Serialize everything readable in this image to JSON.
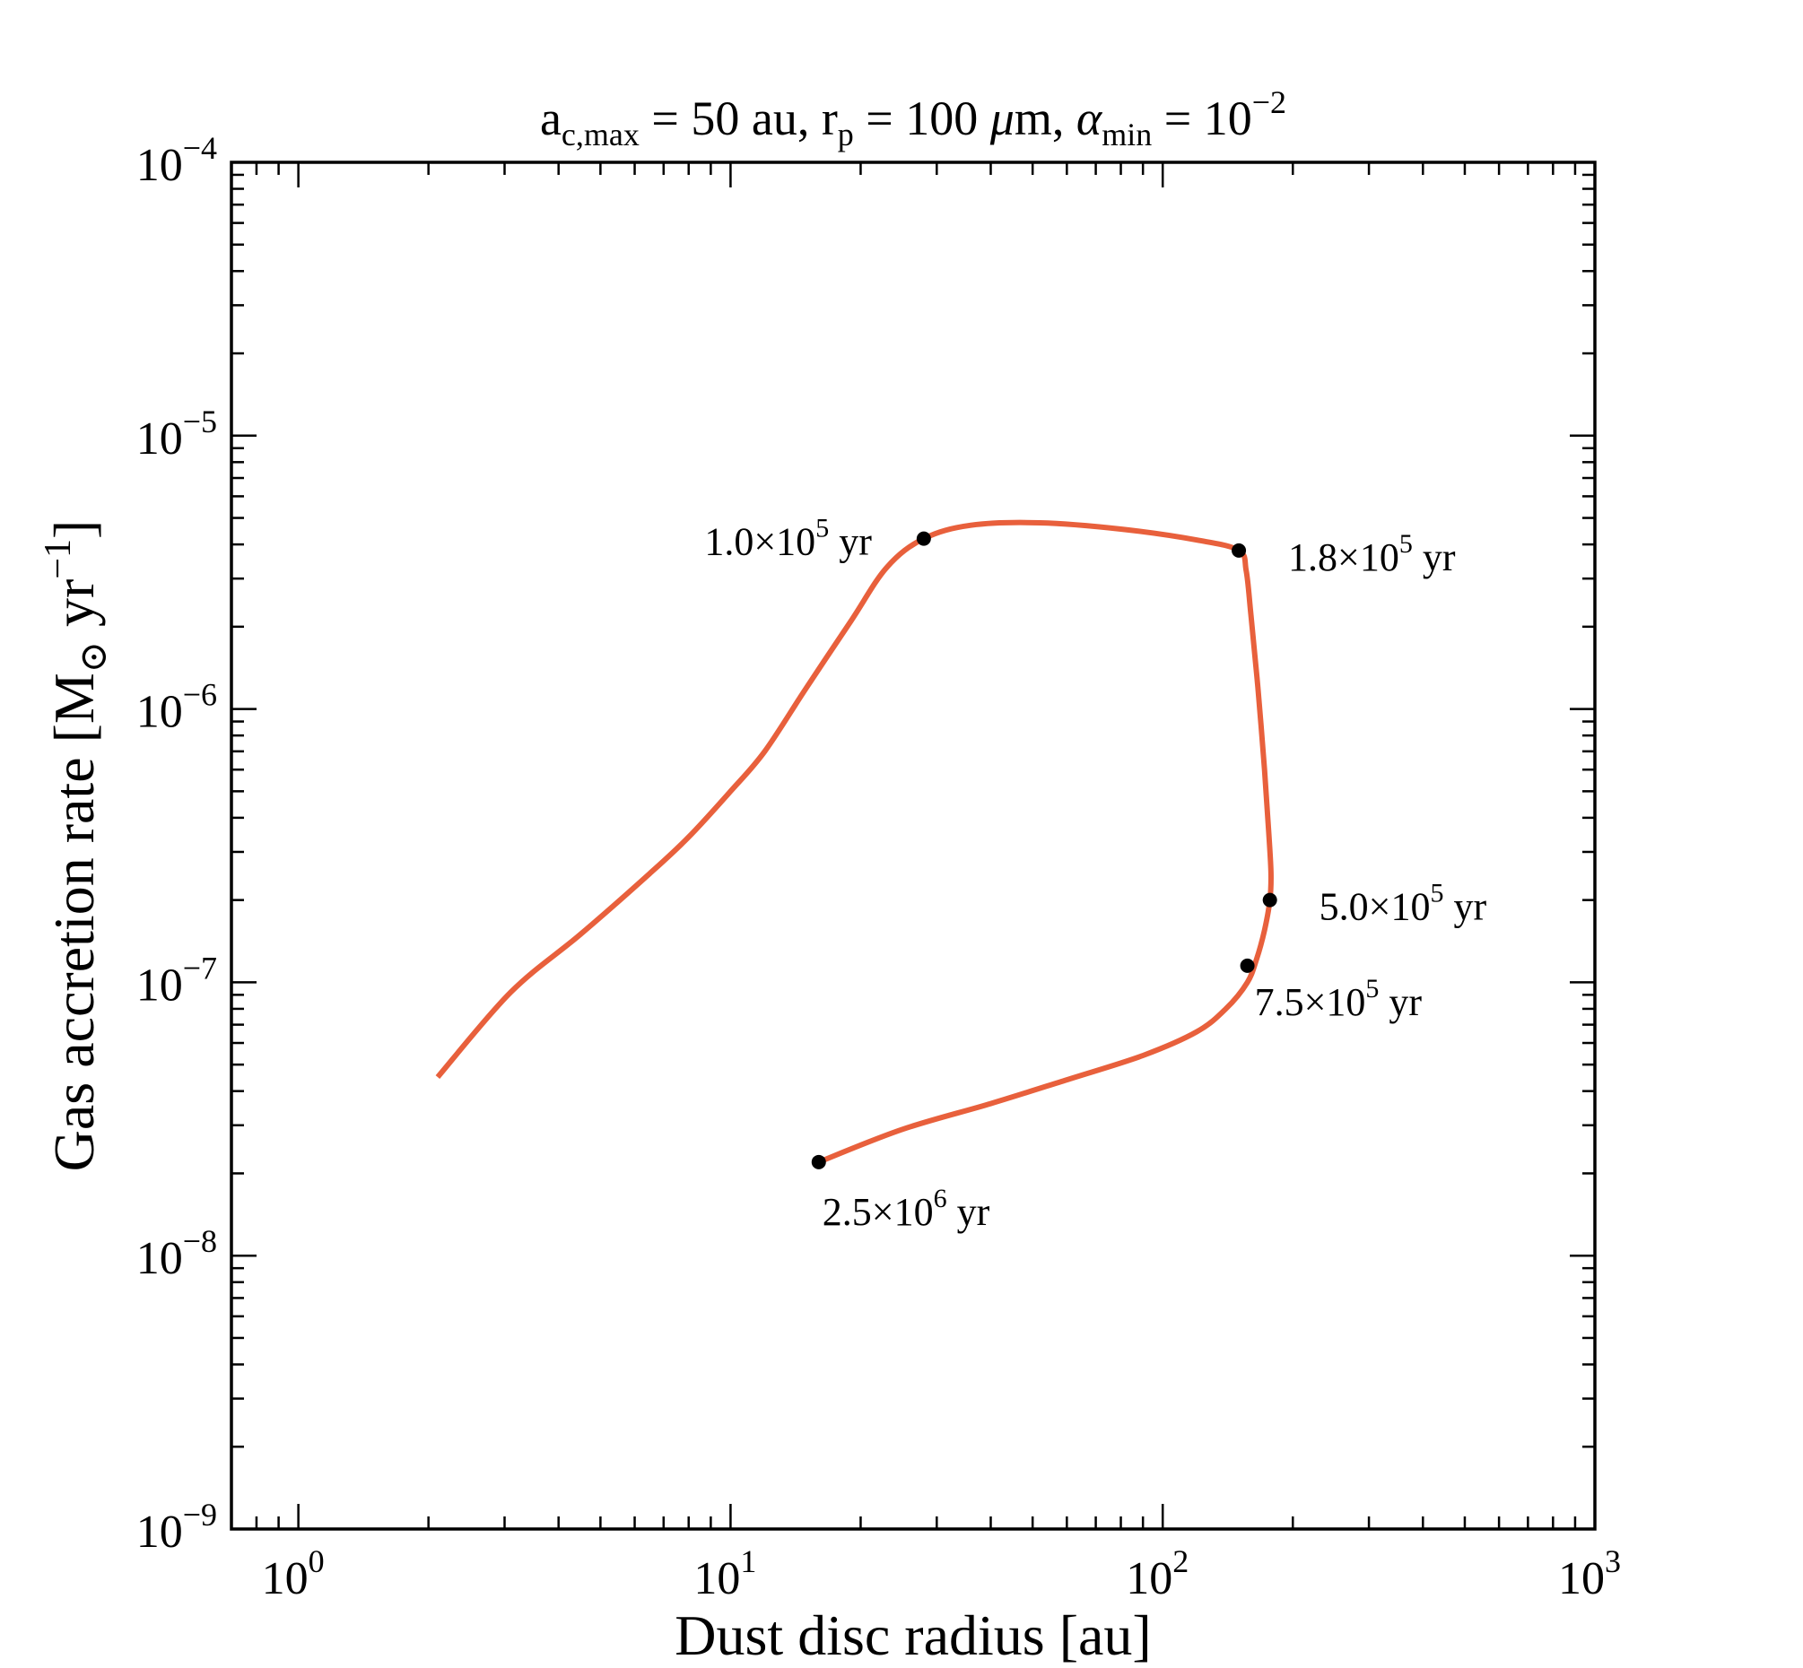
{
  "chart_data": {
    "type": "line",
    "title": {
      "text": "a_c,max = 50 au, r_p = 100 μm, α_min = 10^−2",
      "parts": {
        "a": "a",
        "a_sub": "c,max",
        "seg1": " = 50 au, ",
        "r": "r",
        "r_sub": "p",
        "seg2": " = 100 ",
        "mu": "μ",
        "seg3": "m, ",
        "alpha": "α",
        "alpha_sub": "min",
        "seg4": " = 10",
        "exp": "−2"
      }
    },
    "xlabel": "Dust disc radius [au]",
    "ylabel": {
      "text": "Gas accretion rate [M⊙ yr⁻¹]",
      "parts": {
        "pre": "Gas accretion rate [M",
        "sun": "⊙",
        "mid": " yr",
        "exp": "−1",
        "post": "]"
      }
    },
    "x_scale": "log",
    "y_scale": "log",
    "xlim": [
      0.7,
      1000
    ],
    "ylim": [
      1e-09,
      0.0001
    ],
    "x_ticks": [
      {
        "value": 1,
        "base": "10",
        "exp": "0"
      },
      {
        "value": 10,
        "base": "10",
        "exp": "1"
      },
      {
        "value": 100,
        "base": "10",
        "exp": "2"
      },
      {
        "value": 1000,
        "base": "10",
        "exp": "3"
      }
    ],
    "y_ticks": [
      {
        "value": 1e-09,
        "base": "10",
        "exp": "−9"
      },
      {
        "value": 1e-08,
        "base": "10",
        "exp": "−8"
      },
      {
        "value": 1e-07,
        "base": "10",
        "exp": "−7"
      },
      {
        "value": 1e-06,
        "base": "10",
        "exp": "−6"
      },
      {
        "value": 1e-05,
        "base": "10",
        "exp": "−5"
      },
      {
        "value": 0.0001,
        "base": "10",
        "exp": "−4"
      }
    ],
    "series": [
      {
        "name": "a_c,max = 50 au, r_p = 100 μm, α_min = 10^−2",
        "color": "#e8603c",
        "x": [
          2.1,
          3.1,
          4.5,
          6.5,
          8.0,
          10.0,
          12.0,
          15.0,
          19.0,
          23.0,
          28.0,
          36.0,
          52.0,
          80.0,
          120.0,
          150.0,
          156.0,
          160.0,
          166.0,
          172.0,
          176.0,
          178.0,
          177.0,
          172.0,
          165.0,
          157.0,
          140.0,
          120.0,
          90.0,
          60.0,
          40.0,
          25.0,
          16.0
        ],
        "y": [
          4.5e-08,
          9.2e-08,
          1.5e-07,
          2.5e-07,
          3.4e-07,
          5e-07,
          7e-07,
          1.2e-06,
          2.1e-06,
          3.3e-06,
          4.2e-06,
          4.7e-06,
          4.8e-06,
          4.55e-06,
          4.15e-06,
          3.8e-06,
          3.2e-06,
          2.2e-06,
          1.2e-06,
          6e-07,
          3.5e-07,
          2.5e-07,
          2e-07,
          1.55e-07,
          1.22e-07,
          1e-07,
          8e-08,
          6.6e-08,
          5.4e-08,
          4.4e-08,
          3.6e-08,
          2.9e-08,
          2.2e-08
        ]
      }
    ],
    "annotations": [
      {
        "x": 28,
        "y": 4.2e-06,
        "mantissa": "1.0",
        "times": "×10",
        "exp": "5",
        "unit": "yr",
        "side": "left"
      },
      {
        "x": 150,
        "y": 3.8e-06,
        "mantissa": "1.8",
        "times": "×10",
        "exp": "5",
        "unit": "yr",
        "side": "right"
      },
      {
        "x": 177,
        "y": 2e-07,
        "mantissa": "5.0",
        "times": "×10",
        "exp": "5",
        "unit": "yr",
        "side": "right"
      },
      {
        "x": 157,
        "y": 1.15e-07,
        "mantissa": "7.5",
        "times": "×10",
        "exp": "5",
        "unit": "yr",
        "side": "below-right"
      },
      {
        "x": 16,
        "y": 2.2e-08,
        "mantissa": "2.5",
        "times": "×10",
        "exp": "6",
        "unit": "yr",
        "side": "below"
      }
    ],
    "grid": false,
    "legend": "none"
  }
}
